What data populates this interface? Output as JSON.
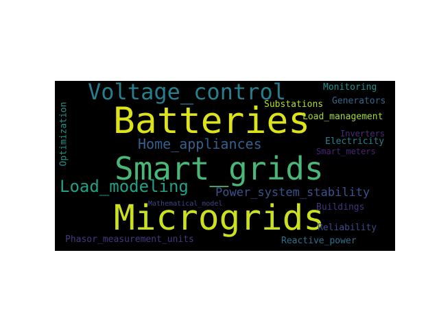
{
  "words": [
    {
      "id": "smart-grids",
      "text": "Smart_grids",
      "color": "#4ab677"
    },
    {
      "id": "microgrids",
      "text": "Microgrids",
      "color": "#cbe01f"
    },
    {
      "id": "batteries",
      "text": "Batteries",
      "color": "#dce319"
    },
    {
      "id": "voltage-control",
      "text": "Voltage_control",
      "color": "#277f8e"
    },
    {
      "id": "load-modeling",
      "text": "Load_modeling",
      "color": "#1fa187"
    },
    {
      "id": "home-appliances",
      "text": "Home_appliances",
      "color": "#34618d"
    },
    {
      "id": "power-system-stability",
      "text": "Power_system_stability",
      "color": "#3b528b"
    },
    {
      "id": "phasor-measurement-units",
      "text": "Phasor_measurement_units",
      "color": "#443983"
    },
    {
      "id": "reactive-power",
      "text": "Reactive_power",
      "color": "#2d708e"
    },
    {
      "id": "reliability",
      "text": "Reliability",
      "color": "#3e4a89"
    },
    {
      "id": "buildings",
      "text": "Buildings",
      "color": "#46327e"
    },
    {
      "id": "smart-meters",
      "text": "Smart_meters",
      "color": "#482475"
    },
    {
      "id": "electricity",
      "text": "Electricity",
      "color": "#26828e"
    },
    {
      "id": "inverters",
      "text": "Inverters",
      "color": "#472c7a"
    },
    {
      "id": "load-management",
      "text": "Load_management",
      "color": "#a5db36"
    },
    {
      "id": "substations",
      "text": "Substations",
      "color": "#b5de2b"
    },
    {
      "id": "generators",
      "text": "Generators",
      "color": "#31688e"
    },
    {
      "id": "monitoring",
      "text": "Monitoring",
      "color": "#21918c"
    },
    {
      "id": "optimization",
      "text": "Optimization",
      "color": "#1f948c"
    },
    {
      "id": "mathematical-model",
      "text": "Mathematical_model",
      "color": "#3f4788"
    }
  ]
}
